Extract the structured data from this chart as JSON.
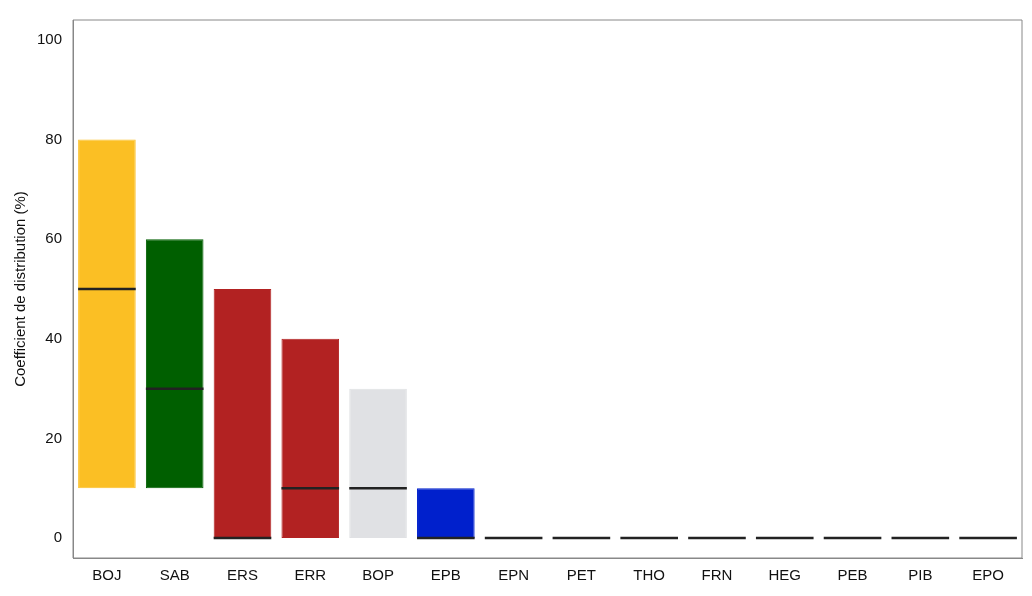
{
  "chart_data": {
    "type": "box",
    "ylabel": "Coefficient de distribution (%)",
    "categories": [
      "BOJ",
      "SAB",
      "ERS",
      "ERR",
      "BOP",
      "EPB",
      "EPN",
      "PET",
      "THO",
      "FRN",
      "HEG",
      "PEB",
      "PIB",
      "EPO"
    ],
    "boxes": [
      {
        "low": 10,
        "q1": 10,
        "median": 50,
        "q3": 80,
        "high": 80
      },
      {
        "low": 10,
        "q1": 10,
        "median": 30,
        "q3": 60,
        "high": 60
      },
      {
        "low": 0,
        "q1": 0,
        "median": 0,
        "q3": 50,
        "high": 50
      },
      {
        "low": 0,
        "q1": 0,
        "median": 10,
        "q3": 40,
        "high": 40
      },
      {
        "low": 0,
        "q1": 0,
        "median": 10,
        "q3": 30,
        "high": 30
      },
      {
        "low": 0,
        "q1": 0,
        "median": 0,
        "q3": 10,
        "high": 10
      },
      {
        "low": 0,
        "q1": 0,
        "median": 0,
        "q3": 0,
        "high": 0
      },
      {
        "low": 0,
        "q1": 0,
        "median": 0,
        "q3": 0,
        "high": 0
      },
      {
        "low": 0,
        "q1": 0,
        "median": 0,
        "q3": 0,
        "high": 0
      },
      {
        "low": 0,
        "q1": 0,
        "median": 0,
        "q3": 0,
        "high": 0
      },
      {
        "low": 0,
        "q1": 0,
        "median": 0,
        "q3": 0,
        "high": 0
      },
      {
        "low": 0,
        "q1": 0,
        "median": 0,
        "q3": 0,
        "high": 0
      },
      {
        "low": 0,
        "q1": 0,
        "median": 0,
        "q3": 0,
        "high": 0
      },
      {
        "low": 0,
        "q1": 0,
        "median": 0,
        "q3": 0,
        "high": 0
      }
    ],
    "colors": [
      "#fbbf24",
      "#005f00",
      "#b22222",
      "#b22222",
      "#e0e1e4",
      "#0020cc",
      "#222222",
      "#222222",
      "#222222",
      "#222222",
      "#222222",
      "#222222",
      "#222222",
      "#222222"
    ],
    "ylim": [
      -4,
      104
    ],
    "yticks": [
      0,
      20,
      40,
      60,
      80,
      100
    ],
    "grid": false,
    "legend": false
  }
}
